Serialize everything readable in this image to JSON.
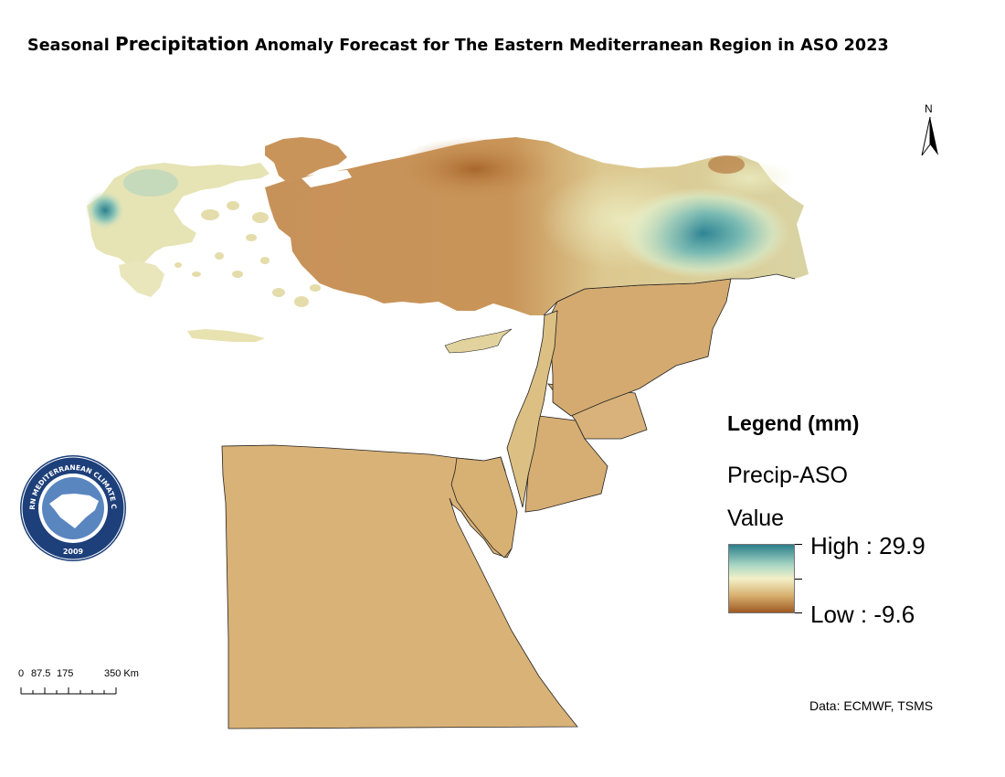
{
  "map": {
    "title_part1": "Seasonal",
    "title_part2": "Precipitation",
    "title_part3": "Anomaly Forecast for The Eastern Mediterranean Region in ASO 2023",
    "north_label": "N",
    "attribution": "Data: ECMWF, TSMS"
  },
  "legend": {
    "title": "Legend (mm)",
    "layer_name": "Precip-ASO",
    "field_label": "Value",
    "high_label": "High : 29.9",
    "low_label": "Low : -9.6",
    "high_value": 29.9,
    "low_value": -9.6,
    "colors": {
      "high": "#2a7e8c",
      "mid_upper": "#a9d6c4",
      "mid": "#f3f0c8",
      "mid_lower": "#d8b070",
      "low": "#9e5a24",
      "base_land": "#d8b27a"
    }
  },
  "scale_bar": {
    "labels": [
      "0",
      "87.5",
      "175",
      "350 Km"
    ]
  },
  "logo": {
    "text_top": "EASTERN MEDITERRANEAN CLIMATE CENTRE",
    "year": "2009",
    "icon": "emcc-logo-icon"
  }
}
